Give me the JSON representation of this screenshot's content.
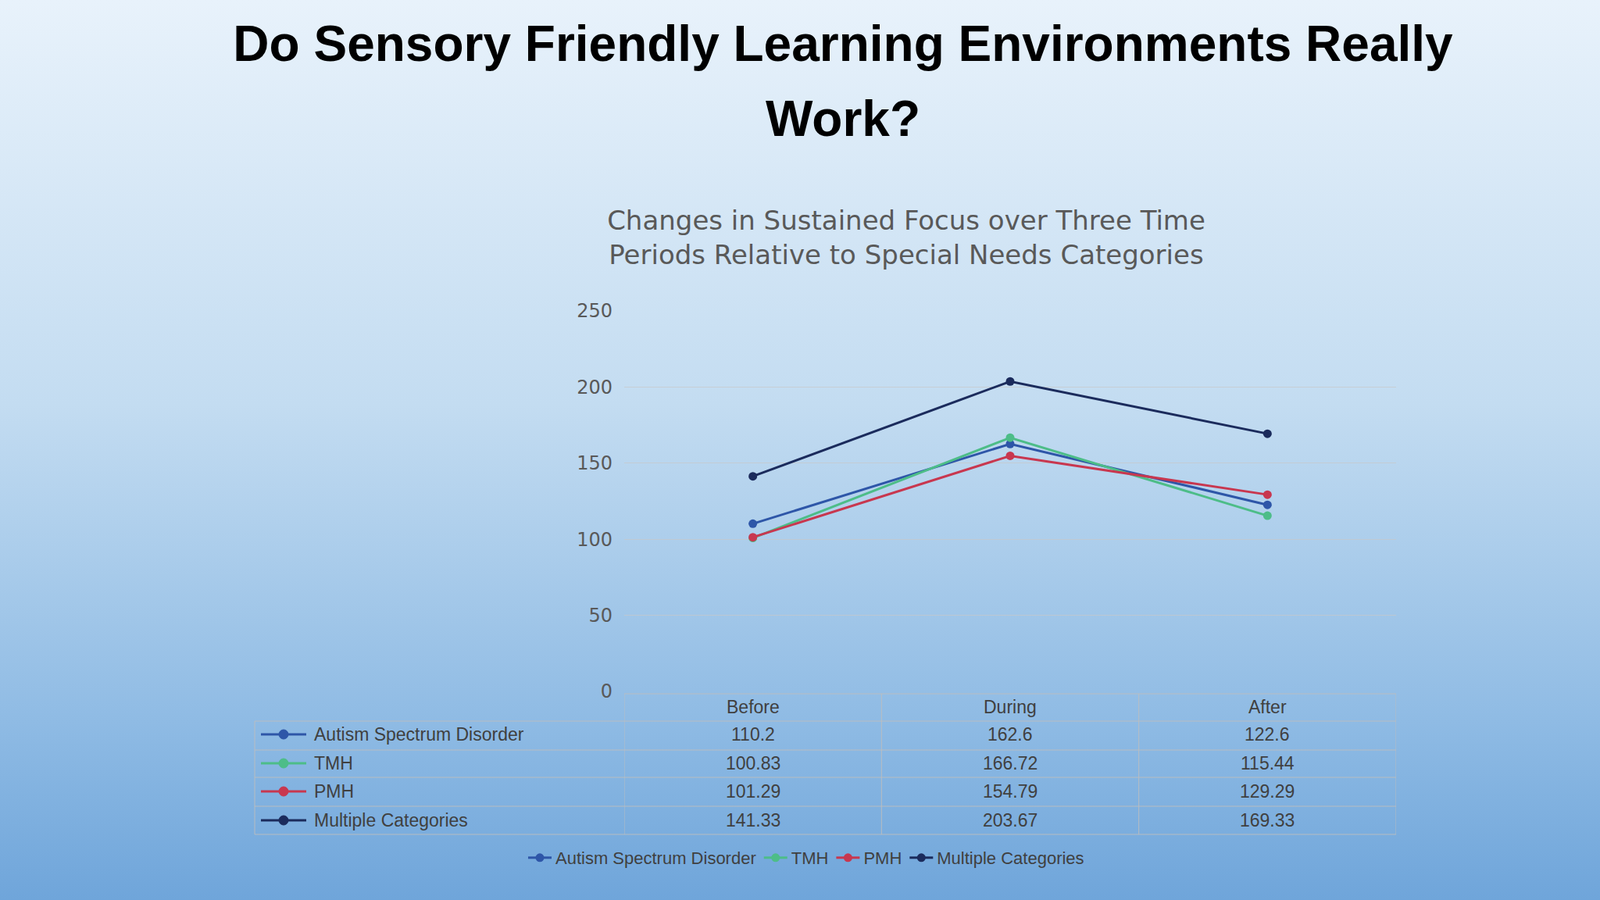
{
  "header": {
    "title": "Do Sensory Friendly Learning Environments Really Work?"
  },
  "chart_data": {
    "type": "line",
    "title": "Changes in Sustained Focus over Three Time Periods Relative to Special Needs Categories",
    "categories": [
      "Before",
      "During",
      "After"
    ],
    "series": [
      {
        "name": "Autism Spectrum Disorder",
        "color": "#2e56a8",
        "values": [
          110.2,
          162.6,
          122.6
        ]
      },
      {
        "name": "TMH",
        "color": "#4dbd88",
        "values": [
          100.83,
          166.72,
          115.44
        ]
      },
      {
        "name": "PMH",
        "color": "#c8374f",
        "values": [
          101.29,
          154.79,
          129.29
        ]
      },
      {
        "name": "Multiple Categories",
        "color": "#1b2b5c",
        "values": [
          141.33,
          203.67,
          169.33
        ]
      }
    ],
    "ylim": [
      0,
      250
    ],
    "yticks": [
      0,
      50,
      100,
      150,
      200,
      250
    ],
    "grid": true,
    "legend": "bottom",
    "marker": "circle"
  }
}
